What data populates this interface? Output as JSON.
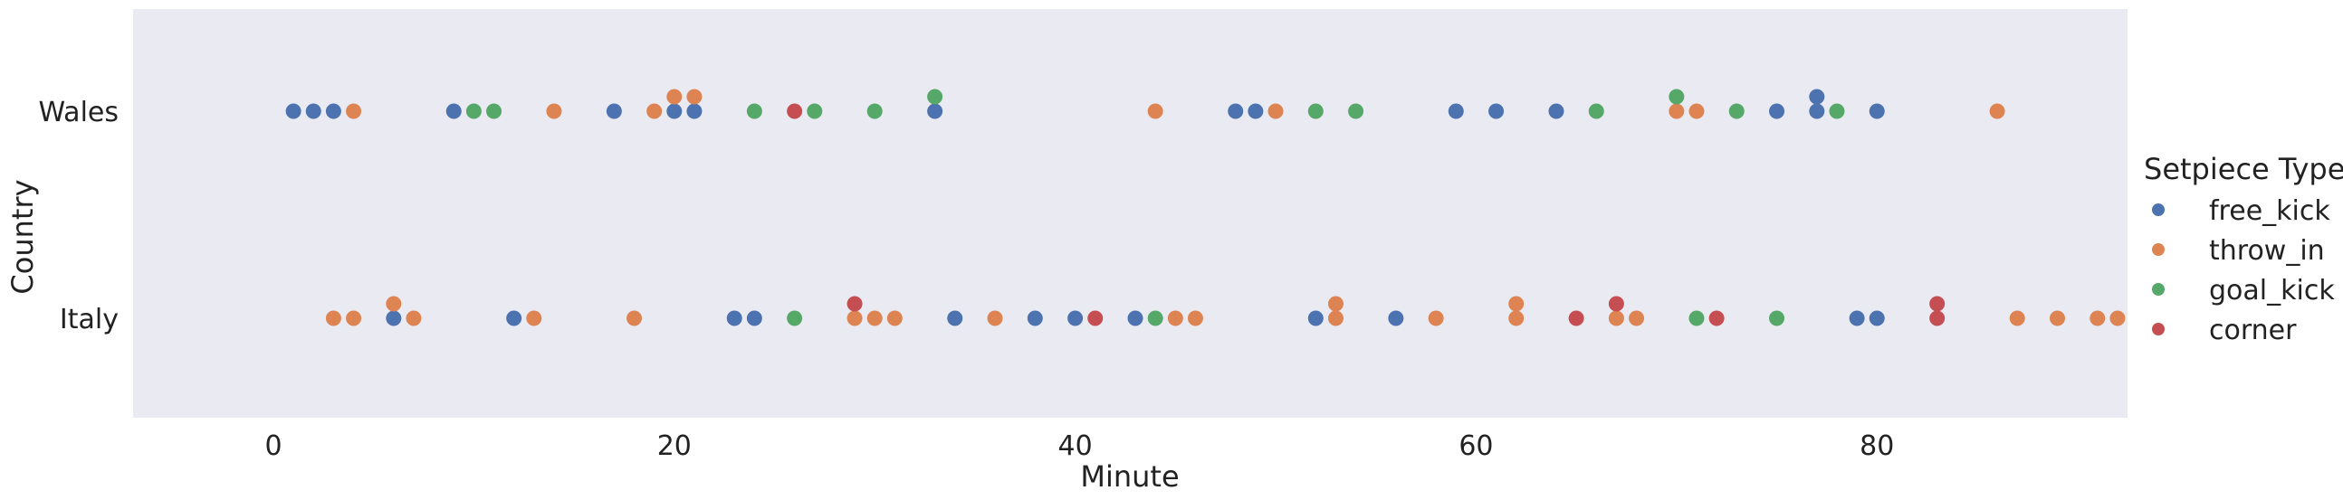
{
  "chart_data": {
    "type": "scatter",
    "subtype": "strip",
    "xlabel": "Minute",
    "ylabel": "Country",
    "xlim": [
      -7,
      92.5
    ],
    "xticks": [
      0,
      20,
      40,
      60,
      80
    ],
    "categories": [
      "Wales",
      "Italy"
    ],
    "grid": false,
    "legend": {
      "title": "Setpiece Type",
      "placement": "right"
    },
    "series": [
      {
        "name": "free_kick",
        "color": "#4c72b0",
        "points": [
          {
            "country": "Wales",
            "minute": 1
          },
          {
            "country": "Wales",
            "minute": 2
          },
          {
            "country": "Wales",
            "minute": 3
          },
          {
            "country": "Wales",
            "minute": 9
          },
          {
            "country": "Wales",
            "minute": 17
          },
          {
            "country": "Wales",
            "minute": 20
          },
          {
            "country": "Wales",
            "minute": 21
          },
          {
            "country": "Wales",
            "minute": 33
          },
          {
            "country": "Wales",
            "minute": 48
          },
          {
            "country": "Wales",
            "minute": 49
          },
          {
            "country": "Wales",
            "minute": 59
          },
          {
            "country": "Wales",
            "minute": 61
          },
          {
            "country": "Wales",
            "minute": 64
          },
          {
            "country": "Wales",
            "minute": 75
          },
          {
            "country": "Wales",
            "minute": 77
          },
          {
            "country": "Wales",
            "minute": 77
          },
          {
            "country": "Wales",
            "minute": 80
          },
          {
            "country": "Italy",
            "minute": 6
          },
          {
            "country": "Italy",
            "minute": 12
          },
          {
            "country": "Italy",
            "minute": 23
          },
          {
            "country": "Italy",
            "minute": 24
          },
          {
            "country": "Italy",
            "minute": 34
          },
          {
            "country": "Italy",
            "minute": 38
          },
          {
            "country": "Italy",
            "minute": 40
          },
          {
            "country": "Italy",
            "minute": 43
          },
          {
            "country": "Italy",
            "minute": 52
          },
          {
            "country": "Italy",
            "minute": 56
          },
          {
            "country": "Italy",
            "minute": 79
          },
          {
            "country": "Italy",
            "minute": 80
          }
        ]
      },
      {
        "name": "throw_in",
        "color": "#dd8452",
        "points": [
          {
            "country": "Wales",
            "minute": 4
          },
          {
            "country": "Wales",
            "minute": 14
          },
          {
            "country": "Wales",
            "minute": 19
          },
          {
            "country": "Wales",
            "minute": 20
          },
          {
            "country": "Wales",
            "minute": 21
          },
          {
            "country": "Wales",
            "minute": 44
          },
          {
            "country": "Wales",
            "minute": 50
          },
          {
            "country": "Wales",
            "minute": 70
          },
          {
            "country": "Wales",
            "minute": 71
          },
          {
            "country": "Wales",
            "minute": 86
          },
          {
            "country": "Italy",
            "minute": 3
          },
          {
            "country": "Italy",
            "minute": 4
          },
          {
            "country": "Italy",
            "minute": 6
          },
          {
            "country": "Italy",
            "minute": 7
          },
          {
            "country": "Italy",
            "minute": 13
          },
          {
            "country": "Italy",
            "minute": 18
          },
          {
            "country": "Italy",
            "minute": 29
          },
          {
            "country": "Italy",
            "minute": 30
          },
          {
            "country": "Italy",
            "minute": 31
          },
          {
            "country": "Italy",
            "minute": 36
          },
          {
            "country": "Italy",
            "minute": 45
          },
          {
            "country": "Italy",
            "minute": 46
          },
          {
            "country": "Italy",
            "minute": 53
          },
          {
            "country": "Italy",
            "minute": 53
          },
          {
            "country": "Italy",
            "minute": 58
          },
          {
            "country": "Italy",
            "minute": 62
          },
          {
            "country": "Italy",
            "minute": 62
          },
          {
            "country": "Italy",
            "minute": 67
          },
          {
            "country": "Italy",
            "minute": 68
          },
          {
            "country": "Italy",
            "minute": 87
          },
          {
            "country": "Italy",
            "minute": 89
          },
          {
            "country": "Italy",
            "minute": 91
          },
          {
            "country": "Italy",
            "minute": 92
          }
        ]
      },
      {
        "name": "goal_kick",
        "color": "#55a868",
        "points": [
          {
            "country": "Wales",
            "minute": 10
          },
          {
            "country": "Wales",
            "minute": 11
          },
          {
            "country": "Wales",
            "minute": 24
          },
          {
            "country": "Wales",
            "minute": 27
          },
          {
            "country": "Wales",
            "minute": 30
          },
          {
            "country": "Wales",
            "minute": 33
          },
          {
            "country": "Wales",
            "minute": 52
          },
          {
            "country": "Wales",
            "minute": 54
          },
          {
            "country": "Wales",
            "minute": 66
          },
          {
            "country": "Wales",
            "minute": 70
          },
          {
            "country": "Wales",
            "minute": 73
          },
          {
            "country": "Wales",
            "minute": 78
          },
          {
            "country": "Italy",
            "minute": 26
          },
          {
            "country": "Italy",
            "minute": 44
          },
          {
            "country": "Italy",
            "minute": 71
          },
          {
            "country": "Italy",
            "minute": 75
          }
        ]
      },
      {
        "name": "corner",
        "color": "#c44e52",
        "points": [
          {
            "country": "Wales",
            "minute": 26
          },
          {
            "country": "Italy",
            "minute": 29
          },
          {
            "country": "Italy",
            "minute": 41
          },
          {
            "country": "Italy",
            "minute": 65
          },
          {
            "country": "Italy",
            "minute": 67
          },
          {
            "country": "Italy",
            "minute": 72
          },
          {
            "country": "Italy",
            "minute": 83
          },
          {
            "country": "Italy",
            "minute": 83
          }
        ]
      }
    ]
  }
}
